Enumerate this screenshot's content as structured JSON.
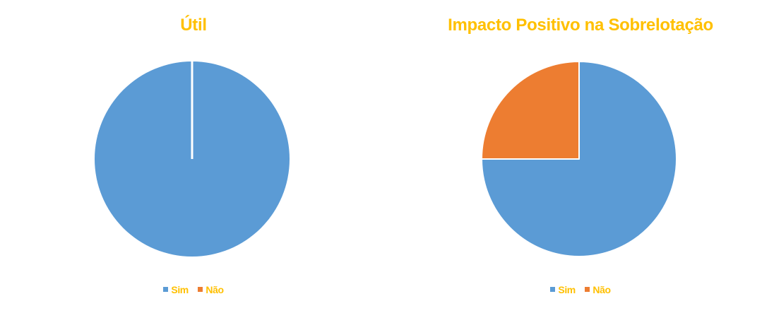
{
  "colors": {
    "sim": "#5b9bd5",
    "nao": "#ed7d31",
    "text": "#ffc000",
    "slice_border": "#ffffff"
  },
  "chart_data": [
    {
      "type": "pie",
      "title": "Útil",
      "categories": [
        "Sim",
        "Não"
      ],
      "values": [
        100,
        0
      ],
      "legend": "bottom"
    },
    {
      "type": "pie",
      "title": "Impacto Positivo na Sobrelotação",
      "categories": [
        "Sim",
        "Não"
      ],
      "values": [
        75,
        25
      ],
      "legend": "bottom"
    }
  ]
}
